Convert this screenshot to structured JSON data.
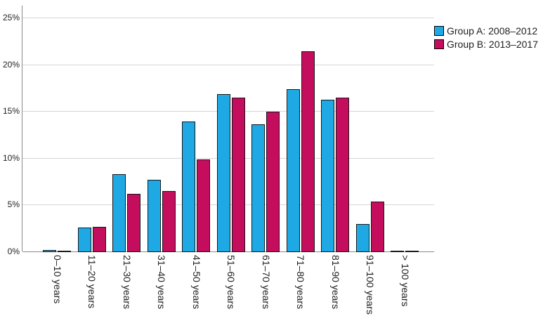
{
  "chart_data": {
    "type": "bar",
    "title": "",
    "xlabel": "",
    "ylabel": "",
    "categories": [
      "0–10 years",
      "11–20 years",
      "21–30 years",
      "31–40 years",
      "41–50 years",
      "51–60 years",
      "61–70 years",
      "71–80 years",
      "81–90 years",
      "91–100 years",
      "> 100 years"
    ],
    "series": [
      {
        "name": "Group A: 2008–2012",
        "color": "#1fa9e4",
        "values": [
          0.2,
          2.6,
          8.3,
          7.7,
          14.0,
          16.9,
          13.7,
          17.4,
          16.3,
          3.0,
          0.05
        ]
      },
      {
        "name": "Group B: 2013–2017",
        "color": "#c40d5c",
        "values": [
          0.05,
          2.7,
          6.2,
          6.5,
          9.9,
          16.5,
          15.0,
          21.5,
          16.5,
          5.4,
          0.05
        ]
      }
    ],
    "ylim": [
      0,
      25
    ],
    "yticks": [
      {
        "value": 0,
        "label": "0%"
      },
      {
        "value": 5,
        "label": "5%"
      },
      {
        "value": 10,
        "label": "10%"
      },
      {
        "value": 15,
        "label": "15%"
      },
      {
        "value": 20,
        "label": "20%"
      },
      {
        "value": 25,
        "label": "25%"
      }
    ],
    "grid": true,
    "legend_position": "top-right",
    "x_label_rotation_deg": 90
  },
  "colors": {
    "series_a_fill": "#1fa9e4",
    "series_b_fill": "#c40d5c",
    "bar_border": "#16191d",
    "gridline": "#d6d6d6",
    "axis": "#8a8a8a",
    "text": "#1f1f1f",
    "legend_swatch_border": "#000000"
  }
}
